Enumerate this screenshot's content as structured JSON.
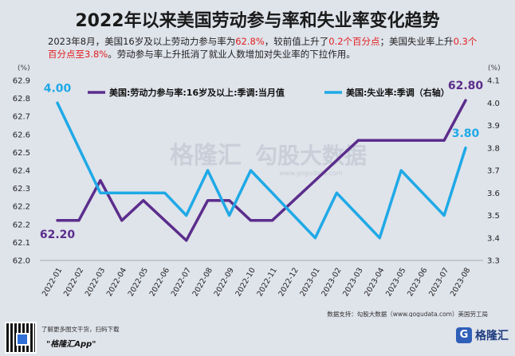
{
  "header": {
    "title": "2022年以来美国劳动参与率和失业率变化趋势",
    "subtitle_parts": [
      {
        "text": "2023年8月，美国16岁及以上劳动力参与率为",
        "hl": false
      },
      {
        "text": "62.8%",
        "hl": true
      },
      {
        "text": "，较前值上升了",
        "hl": false
      },
      {
        "text": "0.2个百分点",
        "hl": true
      },
      {
        "text": "；美国失业率上升",
        "hl": false
      },
      {
        "text": "0.3个百分点至3.8%",
        "hl": true
      },
      {
        "text": "。劳动参与率上升抵消了就业人数增加对失业率的下拉作用。",
        "hl": false
      }
    ],
    "highlight_color": "#e02020"
  },
  "chart_data": {
    "type": "line",
    "categories": [
      "2022-01",
      "2022-02",
      "2022-03",
      "2022-04",
      "2022-05",
      "2022-06",
      "2022-07",
      "2022-08",
      "2022-09",
      "2022-10",
      "2022-11",
      "2022-12",
      "2023-01",
      "2023-02",
      "2023-03",
      "2023-04",
      "2023-05",
      "2023-06",
      "2023-07",
      "2023-08"
    ],
    "left_axis": {
      "unit": "(%)",
      "min": 62.0,
      "max": 62.9,
      "ticks": [
        "62.0",
        "62.1",
        "62.2",
        "62.2",
        "62.3",
        "62.4",
        "62.5",
        "62.6",
        "62.7",
        "62.8",
        "62.9"
      ]
    },
    "right_axis": {
      "unit": "(%)",
      "min": 3.3,
      "max": 4.1,
      "ticks": [
        "3.3",
        "3.4",
        "3.5",
        "3.6",
        "3.7",
        "3.8",
        "3.9",
        "4.0",
        "4.1"
      ]
    },
    "series": [
      {
        "name": "美国:劳动力参与率:16岁及以上:季调:当月值",
        "axis": "left",
        "color": "#5b2d8c",
        "values": [
          62.2,
          62.2,
          62.4,
          62.2,
          62.3,
          62.2,
          62.1,
          62.3,
          62.3,
          62.2,
          62.2,
          62.3,
          62.4,
          62.5,
          62.6,
          62.6,
          62.6,
          62.6,
          62.6,
          62.8
        ],
        "labels": [
          {
            "index": 0,
            "text": "62.20"
          },
          {
            "index": 19,
            "text": "62.80"
          }
        ]
      },
      {
        "name": "美国:失业率:季调（右轴）",
        "axis": "right",
        "color": "#1fa9e6",
        "values": [
          4.0,
          3.8,
          3.6,
          3.6,
          3.6,
          3.6,
          3.5,
          3.7,
          3.5,
          3.7,
          3.6,
          3.5,
          3.4,
          3.6,
          3.5,
          3.4,
          3.7,
          3.6,
          3.5,
          3.8
        ],
        "labels": [
          {
            "index": 0,
            "text": "4.00"
          },
          {
            "index": 19,
            "text": "3.80"
          }
        ]
      }
    ],
    "grid": false,
    "legend": "top"
  },
  "watermark": {
    "brand": "格隆汇",
    "brand2": "勾股大数据",
    "url": "www.gogudata.com"
  },
  "footer": {
    "source": "数据支持：勾股大数据（www.gogudata.com）美国劳工局",
    "promo_line1": "了解更多图文干货，扫码下载",
    "promo_line2": "\"格隆汇App\"",
    "logo_text": "格隆汇",
    "logo_mark": "G"
  }
}
